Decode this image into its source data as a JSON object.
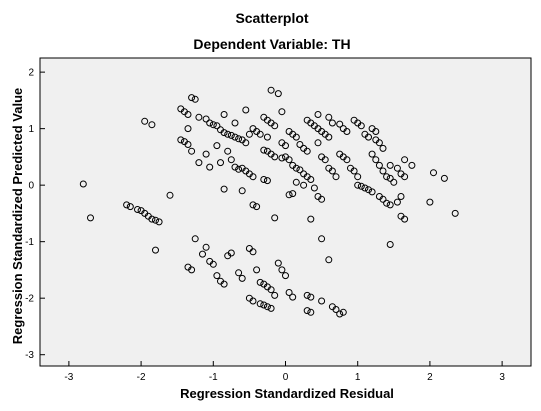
{
  "chart_data": {
    "type": "scatter",
    "title": "Scatterplot",
    "subtitle": "Dependent Variable: TH",
    "xlabel": "Regression Standardized Residual",
    "ylabel": "Regression Standardized Predicted Value",
    "xlim": [
      -3.4,
      3.4
    ],
    "ylim": [
      -3.2,
      2.25
    ],
    "x_ticks": [
      -3,
      -2,
      -1,
      0,
      1,
      2,
      3
    ],
    "y_ticks": [
      2,
      1,
      0,
      -1,
      -2,
      -3
    ],
    "grid": false,
    "legend": "none",
    "background_color": "#f0f0f0",
    "marker_color": "#000000",
    "marker": "open-circle",
    "points": [
      [
        -2.8,
        0.02
      ],
      [
        -2.7,
        -0.58
      ],
      [
        -2.2,
        -0.35
      ],
      [
        -2.15,
        -0.38
      ],
      [
        -2.05,
        -0.43
      ],
      [
        -2.0,
        -0.45
      ],
      [
        -1.95,
        -0.5
      ],
      [
        -1.9,
        -0.55
      ],
      [
        -1.85,
        -0.6
      ],
      [
        -1.8,
        -0.62
      ],
      [
        -1.75,
        -0.65
      ],
      [
        -1.6,
        -0.18
      ],
      [
        -1.8,
        -1.15
      ],
      [
        -1.95,
        1.13
      ],
      [
        -1.85,
        1.07
      ],
      [
        -1.45,
        1.35
      ],
      [
        -1.4,
        1.3
      ],
      [
        -1.35,
        1.25
      ],
      [
        -1.3,
        1.55
      ],
      [
        -1.25,
        1.52
      ],
      [
        -1.2,
        1.2
      ],
      [
        -1.45,
        0.8
      ],
      [
        -1.4,
        0.77
      ],
      [
        -1.35,
        0.72
      ],
      [
        -1.3,
        0.6
      ],
      [
        -1.35,
        1.0
      ],
      [
        -1.2,
        0.4
      ],
      [
        -1.1,
        1.17
      ],
      [
        -1.05,
        1.1
      ],
      [
        -1.0,
        1.07
      ],
      [
        -0.95,
        1.05
      ],
      [
        -0.9,
        0.98
      ],
      [
        -0.85,
        0.93
      ],
      [
        -0.8,
        0.9
      ],
      [
        -0.75,
        0.88
      ],
      [
        -0.7,
        0.85
      ],
      [
        -0.65,
        0.82
      ],
      [
        -0.6,
        0.8
      ],
      [
        -0.55,
        0.75
      ],
      [
        -0.85,
        1.25
      ],
      [
        -0.7,
        1.1
      ],
      [
        -0.55,
        1.33
      ],
      [
        -0.5,
        0.9
      ],
      [
        -0.45,
        1.0
      ],
      [
        -1.1,
        0.55
      ],
      [
        -1.05,
        0.32
      ],
      [
        -0.95,
        0.7
      ],
      [
        -0.9,
        0.4
      ],
      [
        -0.8,
        0.6
      ],
      [
        -0.75,
        0.45
      ],
      [
        -0.7,
        0.32
      ],
      [
        -0.65,
        0.28
      ],
      [
        -0.6,
        0.3
      ],
      [
        -0.55,
        0.25
      ],
      [
        -0.5,
        0.2
      ],
      [
        -0.45,
        0.15
      ],
      [
        -0.4,
        0.95
      ],
      [
        -0.35,
        0.9
      ],
      [
        -0.3,
        0.62
      ],
      [
        -0.25,
        0.6
      ],
      [
        -0.2,
        0.55
      ],
      [
        -0.15,
        0.5
      ],
      [
        -0.3,
        1.2
      ],
      [
        -0.25,
        1.15
      ],
      [
        -0.2,
        1.1
      ],
      [
        -0.15,
        1.05
      ],
      [
        -0.25,
        0.85
      ],
      [
        -0.3,
        0.1
      ],
      [
        -0.25,
        0.08
      ],
      [
        -0.85,
        -0.07
      ],
      [
        -0.6,
        -0.1
      ],
      [
        -0.45,
        -0.35
      ],
      [
        -0.4,
        -0.38
      ],
      [
        -0.2,
        1.68
      ],
      [
        -0.1,
        1.62
      ],
      [
        -0.05,
        1.3
      ],
      [
        0.0,
        0.5
      ],
      [
        -0.05,
        0.48
      ],
      [
        0.05,
        0.45
      ],
      [
        -0.05,
        0.75
      ],
      [
        0.0,
        0.7
      ],
      [
        0.05,
        0.95
      ],
      [
        0.1,
        0.9
      ],
      [
        0.15,
        0.85
      ],
      [
        0.2,
        0.72
      ],
      [
        0.1,
        0.35
      ],
      [
        0.15,
        0.3
      ],
      [
        0.2,
        0.27
      ],
      [
        0.25,
        0.2
      ],
      [
        0.3,
        0.15
      ],
      [
        0.25,
        0.65
      ],
      [
        0.3,
        0.6
      ],
      [
        0.05,
        -0.17
      ],
      [
        0.1,
        -0.15
      ],
      [
        0.15,
        0.05
      ],
      [
        0.25,
        0.0
      ],
      [
        0.35,
        0.1
      ],
      [
        0.4,
        -0.05
      ],
      [
        0.3,
        1.15
      ],
      [
        0.35,
        1.1
      ],
      [
        0.4,
        1.05
      ],
      [
        0.45,
        1.0
      ],
      [
        0.5,
        0.95
      ],
      [
        0.55,
        0.9
      ],
      [
        0.6,
        0.85
      ],
      [
        0.45,
        0.75
      ],
      [
        0.5,
        0.5
      ],
      [
        0.55,
        0.45
      ],
      [
        0.6,
        0.3
      ],
      [
        0.65,
        0.25
      ],
      [
        0.7,
        0.15
      ],
      [
        0.45,
        -0.2
      ],
      [
        0.5,
        -0.25
      ],
      [
        -0.15,
        -0.58
      ],
      [
        0.35,
        -0.6
      ],
      [
        0.5,
        -0.95
      ],
      [
        0.6,
        -1.32
      ],
      [
        0.45,
        1.25
      ],
      [
        0.6,
        1.2
      ],
      [
        0.65,
        1.1
      ],
      [
        0.75,
        1.08
      ],
      [
        0.8,
        1.0
      ],
      [
        0.85,
        0.95
      ],
      [
        0.75,
        0.55
      ],
      [
        0.8,
        0.5
      ],
      [
        0.85,
        0.45
      ],
      [
        0.9,
        0.3
      ],
      [
        0.95,
        0.25
      ],
      [
        1.0,
        0.15
      ],
      [
        0.95,
        1.15
      ],
      [
        1.0,
        1.1
      ],
      [
        1.05,
        1.05
      ],
      [
        1.1,
        0.9
      ],
      [
        1.15,
        0.85
      ],
      [
        1.2,
        0.55
      ],
      [
        1.0,
        0.0
      ],
      [
        1.05,
        -0.02
      ],
      [
        1.1,
        -0.05
      ],
      [
        1.15,
        -0.08
      ],
      [
        1.2,
        -0.12
      ],
      [
        1.25,
        0.45
      ],
      [
        1.3,
        0.35
      ],
      [
        1.35,
        0.25
      ],
      [
        1.4,
        0.15
      ],
      [
        1.45,
        0.12
      ],
      [
        1.5,
        0.05
      ],
      [
        1.25,
        0.8
      ],
      [
        1.3,
        0.75
      ],
      [
        1.35,
        0.65
      ],
      [
        1.2,
        1.0
      ],
      [
        1.25,
        0.95
      ],
      [
        1.3,
        -0.2
      ],
      [
        1.35,
        -0.25
      ],
      [
        1.4,
        -0.32
      ],
      [
        1.45,
        -0.35
      ],
      [
        1.55,
        -0.3
      ],
      [
        1.6,
        -0.2
      ],
      [
        1.45,
        0.35
      ],
      [
        1.55,
        0.3
      ],
      [
        1.6,
        0.2
      ],
      [
        1.65,
        0.15
      ],
      [
        1.65,
        0.45
      ],
      [
        1.75,
        0.35
      ],
      [
        1.6,
        -0.55
      ],
      [
        1.65,
        -0.6
      ],
      [
        1.45,
        -1.05
      ],
      [
        2.0,
        -0.3
      ],
      [
        2.05,
        0.22
      ],
      [
        2.2,
        0.12
      ],
      [
        2.35,
        -0.5
      ],
      [
        -1.35,
        -1.45
      ],
      [
        -1.3,
        -1.5
      ],
      [
        -1.25,
        -0.95
      ],
      [
        -1.15,
        -1.22
      ],
      [
        -1.05,
        -1.35
      ],
      [
        -1.0,
        -1.4
      ],
      [
        -1.1,
        -1.1
      ],
      [
        -0.95,
        -1.6
      ],
      [
        -0.9,
        -1.7
      ],
      [
        -0.85,
        -1.75
      ],
      [
        -0.8,
        -1.25
      ],
      [
        -0.75,
        -1.2
      ],
      [
        -0.65,
        -1.55
      ],
      [
        -0.6,
        -1.65
      ],
      [
        -0.5,
        -1.12
      ],
      [
        -0.45,
        -1.18
      ],
      [
        -0.4,
        -1.5
      ],
      [
        -0.35,
        -1.72
      ],
      [
        -0.3,
        -1.75
      ],
      [
        -0.25,
        -1.8
      ],
      [
        -0.2,
        -1.85
      ],
      [
        -0.15,
        -1.95
      ],
      [
        -0.1,
        -1.38
      ],
      [
        -0.05,
        -1.5
      ],
      [
        0.0,
        -1.6
      ],
      [
        0.05,
        -1.9
      ],
      [
        0.1,
        -1.98
      ],
      [
        -0.5,
        -2.0
      ],
      [
        -0.45,
        -2.05
      ],
      [
        -0.35,
        -2.1
      ],
      [
        -0.3,
        -2.12
      ],
      [
        -0.25,
        -2.15
      ],
      [
        -0.2,
        -2.18
      ],
      [
        0.3,
        -1.95
      ],
      [
        0.35,
        -1.98
      ],
      [
        0.5,
        -2.05
      ],
      [
        0.3,
        -2.22
      ],
      [
        0.35,
        -2.25
      ],
      [
        0.65,
        -2.15
      ],
      [
        0.7,
        -2.2
      ],
      [
        0.8,
        -2.25
      ],
      [
        0.75,
        -2.28
      ]
    ]
  }
}
